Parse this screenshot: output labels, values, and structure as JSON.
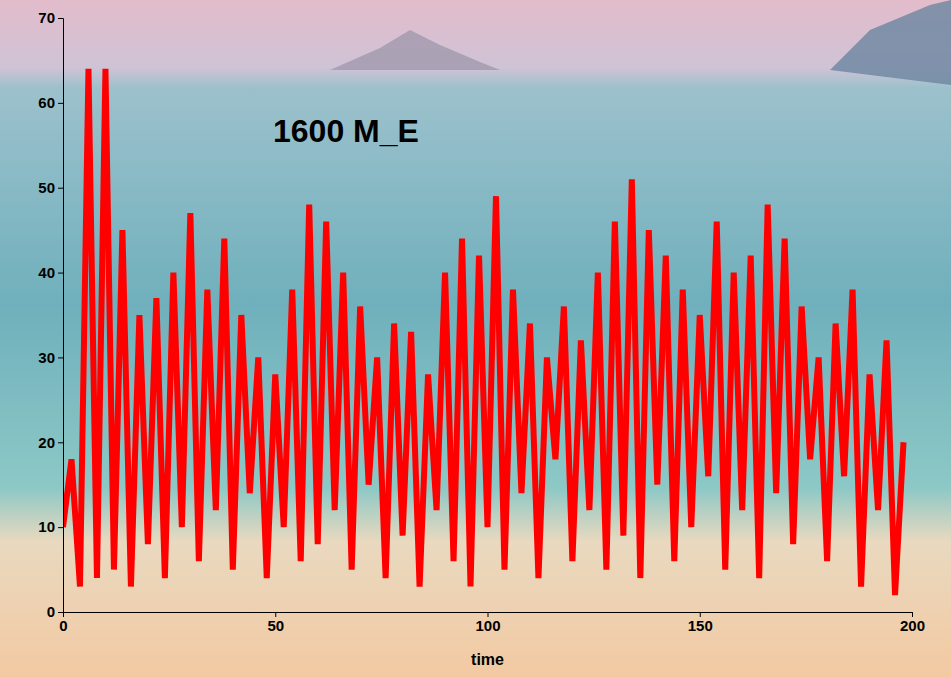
{
  "chart_data": {
    "type": "line",
    "title": "1600 M_E",
    "x_label": "time",
    "color": "#ff0000",
    "x": [
      0,
      2,
      4,
      6,
      8,
      10,
      12,
      14,
      16,
      18,
      20,
      22,
      24,
      26,
      28,
      30,
      32,
      34,
      36,
      38,
      40,
      42,
      44,
      46,
      48,
      50,
      52,
      54,
      56,
      58,
      60,
      62,
      64,
      66,
      68,
      70,
      72,
      74,
      76,
      78,
      80,
      82,
      84,
      86,
      88,
      90,
      92,
      94,
      96,
      98,
      100,
      102,
      104,
      106,
      108,
      110,
      112,
      114,
      116,
      118,
      120,
      122,
      124,
      126,
      128,
      130,
      132,
      134,
      136,
      138,
      140,
      142,
      144,
      146,
      148,
      150,
      152,
      154,
      156,
      158,
      160,
      162,
      164,
      166,
      168,
      170,
      172,
      174,
      176,
      178,
      180,
      182,
      184,
      186,
      188,
      190,
      192,
      194,
      196,
      198
    ],
    "values": [
      10,
      18,
      3,
      64,
      4,
      64,
      5,
      45,
      3,
      35,
      8,
      37,
      4,
      40,
      10,
      47,
      6,
      38,
      12,
      44,
      5,
      35,
      14,
      30,
      4,
      28,
      10,
      38,
      6,
      48,
      8,
      46,
      12,
      40,
      5,
      36,
      15,
      30,
      4,
      34,
      9,
      33,
      3,
      28,
      12,
      40,
      6,
      44,
      3,
      42,
      10,
      49,
      5,
      38,
      14,
      34,
      4,
      30,
      18,
      36,
      6,
      32,
      12,
      40,
      5,
      46,
      9,
      51,
      4,
      45,
      15,
      42,
      6,
      38,
      10,
      35,
      16,
      46,
      5,
      40,
      12,
      42,
      4,
      48,
      14,
      44,
      8,
      36,
      18,
      30,
      6,
      34,
      16,
      38,
      3,
      28,
      12,
      32,
      2,
      20
    ],
    "xlim": [
      0,
      200
    ],
    "xticks": [
      0,
      50,
      100,
      150,
      200
    ],
    "ylim": [
      0,
      70
    ],
    "yticks": [
      0,
      10,
      20,
      30,
      40,
      50,
      60,
      70
    ],
    "grid": false
  }
}
